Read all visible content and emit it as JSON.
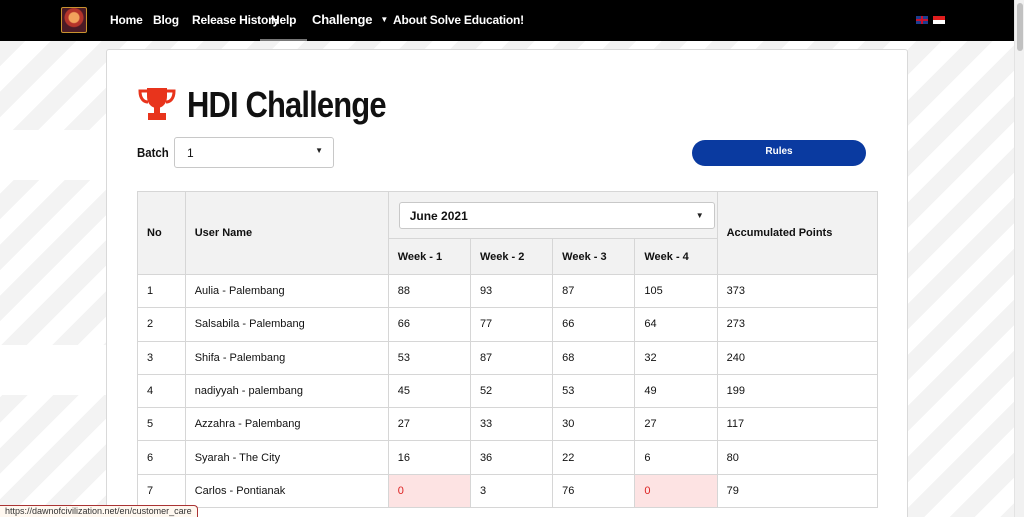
{
  "nav": {
    "items": [
      {
        "label": "Home"
      },
      {
        "label": "Blog"
      },
      {
        "label": "Release History"
      },
      {
        "label": "Help"
      },
      {
        "label": "Challenge"
      },
      {
        "label": "About Solve Education!"
      }
    ],
    "active": "Help"
  },
  "page": {
    "title": "HDI Challenge",
    "batch_label": "Batch",
    "batch_value": "1",
    "rules_label": "Rules"
  },
  "table": {
    "headers": {
      "no": "No",
      "user": "User Name",
      "month": "June 2021",
      "weeks": [
        "Week - 1",
        "Week - 2",
        "Week - 3",
        "Week - 4"
      ],
      "accumulated": "Accumulated Points"
    },
    "rows": [
      {
        "no": "1",
        "user": "Aulia - Palembang",
        "w1": "88",
        "w2": "93",
        "w3": "87",
        "w4": "105",
        "total": "373"
      },
      {
        "no": "2",
        "user": "Salsabila - Palembang",
        "w1": "66",
        "w2": "77",
        "w3": "66",
        "w4": "64",
        "total": "273"
      },
      {
        "no": "3",
        "user": "Shifa - Palembang",
        "w1": "53",
        "w2": "87",
        "w3": "68",
        "w4": "32",
        "total": "240"
      },
      {
        "no": "4",
        "user": "nadiyyah - palembang",
        "w1": "45",
        "w2": "52",
        "w3": "53",
        "w4": "49",
        "total": "199"
      },
      {
        "no": "5",
        "user": "Azzahra - Palembang",
        "w1": "27",
        "w2": "33",
        "w3": "30",
        "w4": "27",
        "total": "117"
      },
      {
        "no": "6",
        "user": "Syarah - The City",
        "w1": "16",
        "w2": "36",
        "w3": "22",
        "w4": "6",
        "total": "80"
      },
      {
        "no": "7",
        "user": "Carlos - Pontianak",
        "w1": "0",
        "w2": "3",
        "w3": "76",
        "w4": "0",
        "total": "79"
      }
    ]
  },
  "status_bar": {
    "url": "https://dawnofcivilization.net/en/customer_care"
  },
  "colors": {
    "navbar": "#000000",
    "rules_button": "#0a3aa0",
    "zero_cell_bg": "#fde3e3",
    "zero_cell_text": "#dd2222",
    "trophy": "#e8341c"
  }
}
